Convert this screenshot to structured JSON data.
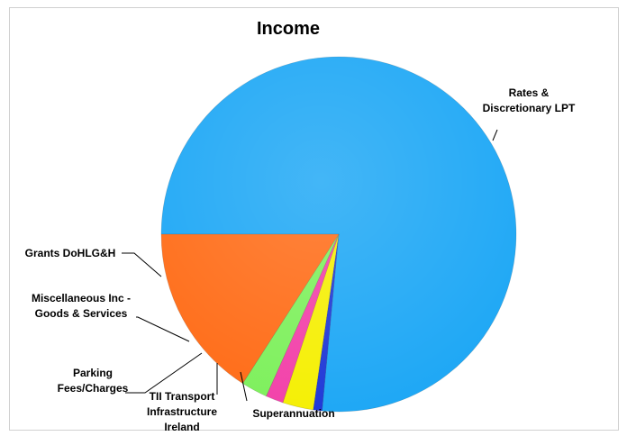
{
  "chart_data": {
    "type": "pie",
    "title": "Income",
    "slices": [
      {
        "label": "Rates & Discretionary LPT",
        "value": 76.5,
        "color": "#1aa6f5",
        "label_lines": [
          "Rates &",
          "Discretionary LPT"
        ]
      },
      {
        "label": "Superannuation",
        "value": 0.8,
        "color": "#1c35d6",
        "label_lines": [
          "Superannuation"
        ]
      },
      {
        "label": "TII Transport Infrastructure Ireland",
        "value": 2.8,
        "color": "#f5ef00",
        "label_lines": [
          "TII Transport",
          "Infrastructure",
          "Ireland"
        ]
      },
      {
        "label": "Parking Fees/Charges",
        "value": 1.6,
        "color": "#f23ea8",
        "label_lines": [
          "Parking",
          "Fees/Charges"
        ]
      },
      {
        "label": "Miscellaneous Inc - Goods & Services",
        "value": 2.4,
        "color": "#7cf05a",
        "label_lines": [
          "Miscellaneous Inc -",
          "Goods & Services"
        ]
      },
      {
        "label": "Grants DoHLG&H",
        "value": 15.9,
        "color": "#ff6a14",
        "label_lines": [
          "Grants DoHLG&H"
        ]
      }
    ]
  }
}
